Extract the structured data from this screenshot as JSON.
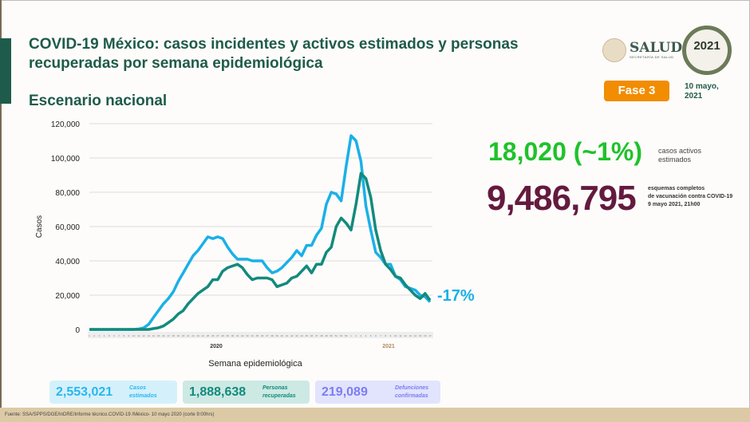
{
  "header": {
    "title": "COVID-19 México: casos incidentes y activos estimados y personas recuperadas por semana epidemiológica",
    "subtitle": "Escenario nacional",
    "logo_salud": "SALUD",
    "logo_salud_sub": "SECRETARÍA DE SALUD",
    "logo_2021": "México 2021 Año de la Independencia",
    "phase": "Fase 3",
    "date": "10 mayo, 2021"
  },
  "stats": {
    "active_value": "18,020 (~1%)",
    "active_label": "casos activos estimados",
    "vaccine_value": "9,486,795",
    "vaccine_label_1": "esquemas completos",
    "vaccine_label_2": "de vacunación contra COVID-19",
    "vaccine_label_3": "9 mayo 2021, 21h00",
    "change_pct": "-17%"
  },
  "summary": [
    {
      "value": "2,553,021",
      "label": "Casos estimados",
      "color": "#29b6ef",
      "bg": "#d4f1fb"
    },
    {
      "value": "1,888,638",
      "label": "Personas recuperadas",
      "color": "#138a7c",
      "bg": "#cde9e4"
    },
    {
      "value": "219,089",
      "label": "Defunciones confirmadas",
      "color": "#7b7df2",
      "bg": "#e2e3fd"
    }
  ],
  "footer": "Fuente: SSA/SPPS/DGE/InDRE/Informe técnico.COVID-19 /México- 10 mayo 2020 (corte 9:00hrs)",
  "chart_data": {
    "type": "line",
    "xlabel": "Semana epidemiológica",
    "ylabel": "Casos",
    "ylim": [
      0,
      120000
    ],
    "yticks": [
      "0",
      "20,000",
      "40,000",
      "60,000",
      "80,000",
      "100,000",
      "120,000"
    ],
    "year_labels": [
      "2020",
      "2021"
    ],
    "grid": true,
    "categories": [
      1,
      2,
      3,
      4,
      5,
      6,
      7,
      8,
      9,
      10,
      11,
      12,
      13,
      14,
      15,
      16,
      17,
      18,
      19,
      20,
      21,
      22,
      23,
      24,
      25,
      26,
      27,
      28,
      29,
      30,
      31,
      32,
      33,
      34,
      35,
      36,
      37,
      38,
      39,
      40,
      41,
      42,
      43,
      44,
      45,
      46,
      47,
      48,
      49,
      50,
      51,
      52,
      53,
      1,
      2,
      3,
      4,
      5,
      6,
      7,
      8,
      9,
      10,
      11,
      12,
      13,
      14,
      15,
      16,
      17
    ],
    "series": [
      {
        "color": "#1ab0e8",
        "values": [
          0,
          0,
          0,
          0,
          0,
          0,
          0,
          0,
          0,
          0,
          300,
          1000,
          3000,
          7000,
          11000,
          15000,
          18000,
          22000,
          28000,
          33000,
          38000,
          43000,
          46000,
          50000,
          54000,
          53000,
          54000,
          53000,
          48000,
          44000,
          41000,
          41000,
          41000,
          40000,
          40000,
          40000,
          36000,
          33000,
          34000,
          36000,
          39000,
          42000,
          46000,
          43000,
          49000,
          49000,
          55000,
          59000,
          73000,
          80000,
          79000,
          75000,
          95000,
          113000,
          110000,
          98000,
          72000,
          58000,
          45000,
          42000,
          38000,
          38000,
          31000,
          29000,
          25000,
          24000,
          23000,
          20000,
          19000,
          16000
        ]
      },
      {
        "color": "#138a7c",
        "values": [
          0,
          0,
          0,
          0,
          0,
          0,
          0,
          0,
          0,
          0,
          0,
          0,
          0,
          500,
          1000,
          2000,
          4000,
          6000,
          9000,
          11000,
          15000,
          18000,
          21000,
          23000,
          25000,
          29000,
          29000,
          34000,
          36000,
          37000,
          38000,
          36000,
          32000,
          29000,
          30000,
          30000,
          30000,
          29000,
          25000,
          26000,
          27000,
          30000,
          31000,
          34000,
          37000,
          33000,
          38000,
          38000,
          45000,
          48000,
          60000,
          65000,
          62000,
          58000,
          73000,
          91000,
          88000,
          77000,
          58000,
          46000,
          38000,
          35000,
          31000,
          30000,
          26000,
          23000,
          20000,
          18000,
          21000,
          17000
        ]
      }
    ]
  }
}
